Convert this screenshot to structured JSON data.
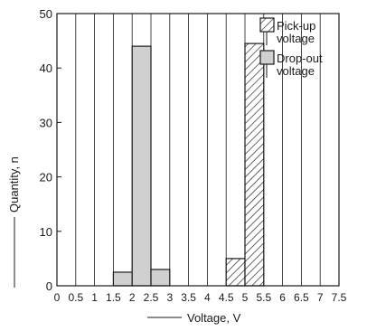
{
  "chart_data": {
    "type": "bar",
    "title": "",
    "xlabel": "Voltage, V",
    "ylabel": "Quantity, n",
    "xlim": [
      0,
      7.5
    ],
    "ylim": [
      0,
      50
    ],
    "x_ticks": [
      "0",
      "0.5",
      "1",
      "1.5",
      "2",
      "2.5",
      "3",
      "3.5",
      "4",
      "4.5",
      "5",
      "5.5",
      "6",
      "6.5",
      "7",
      "7.5"
    ],
    "y_ticks": [
      "0",
      "10",
      "20",
      "30",
      "40",
      "50"
    ],
    "grid": "vertical",
    "legend_position": "top-right",
    "bin_width": 0.5,
    "series": [
      {
        "name": "Pick-up voltage",
        "pattern": "hatched",
        "bins": [
          {
            "x_start": 4.5,
            "x_end": 5.0,
            "value": 5
          },
          {
            "x_start": 5.0,
            "x_end": 5.5,
            "value": 44.5
          }
        ]
      },
      {
        "name": "Drop-out voltage",
        "color": "#d0d0d0",
        "bins": [
          {
            "x_start": 1.5,
            "x_end": 2.0,
            "value": 2.5
          },
          {
            "x_start": 2.0,
            "x_end": 2.5,
            "value": 44
          },
          {
            "x_start": 2.5,
            "x_end": 3.0,
            "value": 3
          }
        ]
      }
    ],
    "legend": [
      {
        "series_index": 0,
        "lines": [
          "Pick-up",
          "voltage"
        ]
      },
      {
        "series_index": 1,
        "lines": [
          "Drop-out",
          "voltage"
        ]
      }
    ]
  }
}
